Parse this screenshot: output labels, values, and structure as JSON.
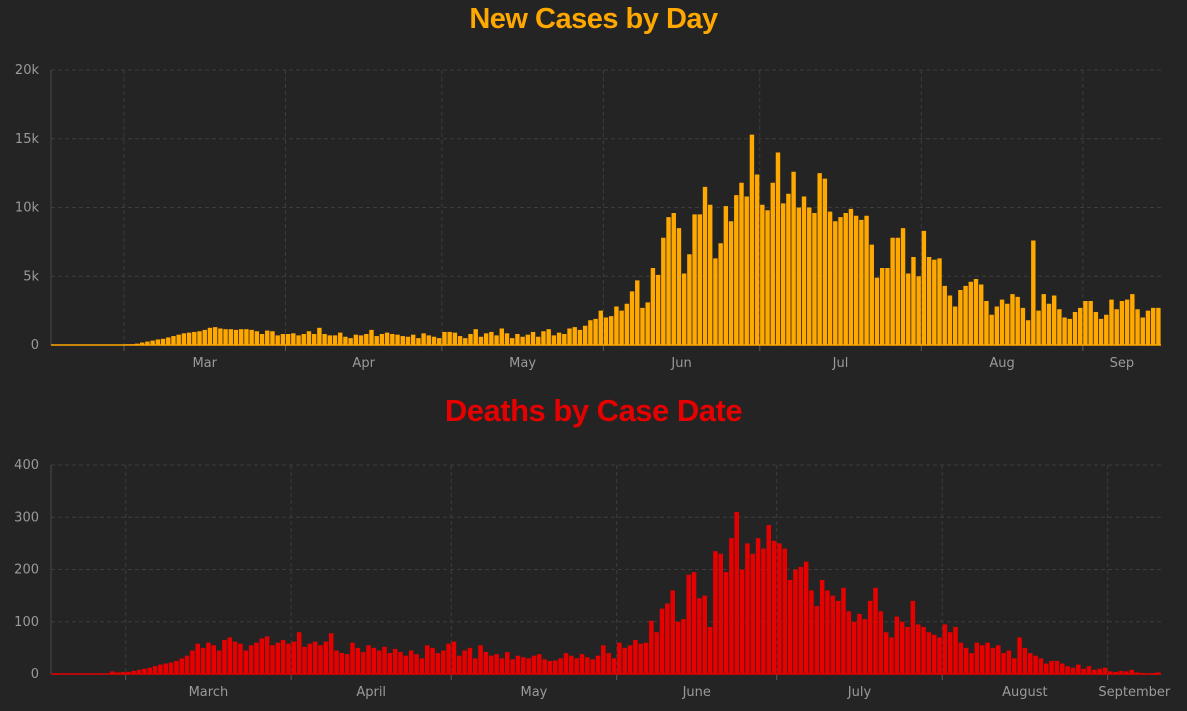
{
  "colors": {
    "background": "#242424",
    "cases": "#FFA800",
    "deaths": "#E60000",
    "grid": "#3c3c3c",
    "text": "#9a9a9a"
  },
  "chart_data": [
    {
      "type": "bar",
      "title": "New Cases by Day",
      "ylim": [
        0,
        20000
      ],
      "yticks": [
        {
          "value": 0,
          "label": "0"
        },
        {
          "value": 5000,
          "label": "5k"
        },
        {
          "value": 10000,
          "label": "10k"
        },
        {
          "value": 15000,
          "label": "15k"
        },
        {
          "value": 20000,
          "label": "20k"
        }
      ],
      "xticks": [
        {
          "date": "2020-03-01",
          "label": "Mar"
        },
        {
          "date": "2020-04-01",
          "label": "Apr"
        },
        {
          "date": "2020-05-01",
          "label": "May"
        },
        {
          "date": "2020-06-01",
          "label": "Jun"
        },
        {
          "date": "2020-07-01",
          "label": "Jul"
        },
        {
          "date": "2020-08-01",
          "label": "Aug"
        },
        {
          "date": "2020-09-01",
          "label": "Sep"
        }
      ],
      "x_start": "2020-02-16",
      "x_end": "2020-09-07",
      "grid": true,
      "values": [
        0,
        0,
        0,
        0,
        0,
        0,
        0,
        0,
        0,
        0,
        0,
        0,
        0,
        0,
        50,
        60,
        100,
        180,
        250,
        320,
        400,
        450,
        550,
        650,
        750,
        850,
        900,
        950,
        1000,
        1100,
        1250,
        1300,
        1200,
        1150,
        1150,
        1100,
        1150,
        1150,
        1100,
        1000,
        800,
        1050,
        1000,
        700,
        800,
        800,
        850,
        700,
        800,
        1000,
        800,
        1250,
        800,
        700,
        700,
        900,
        600,
        500,
        750,
        700,
        800,
        1100,
        650,
        800,
        900,
        800,
        750,
        650,
        600,
        750,
        500,
        850,
        700,
        600,
        500,
        950,
        950,
        900,
        650,
        500,
        800,
        1150,
        600,
        850,
        950,
        700,
        1200,
        850,
        500,
        800,
        600,
        750,
        950,
        600,
        1000,
        1150,
        700,
        900,
        800,
        1200,
        1300,
        1100,
        1400,
        1800,
        1900,
        2500,
        2000,
        2100,
        2800,
        2500,
        3000,
        3900,
        4700,
        2700,
        3100,
        5600,
        5100,
        7800,
        9300,
        9600,
        8500,
        5200,
        6600,
        9500,
        9500,
        11500,
        10200,
        6300,
        7400,
        10100,
        9000,
        10900,
        11800,
        10800,
        15300,
        12400,
        10200,
        9800,
        11800,
        14000,
        10300,
        11000,
        12600,
        10000,
        10800,
        10000,
        9600,
        12500,
        12100,
        9700,
        9000,
        9300,
        9600,
        9900,
        9400,
        9100,
        9400,
        7300,
        4900,
        5600,
        5600,
        7800,
        7800,
        8500,
        5200,
        6400,
        5000,
        8300,
        6400,
        6200,
        6300,
        4300,
        3600,
        2800,
        4000,
        4300,
        4600,
        4800,
        4400,
        3200,
        2200,
        2800,
        3300,
        3000,
        3700,
        3500,
        2700,
        1800,
        7600,
        2500,
        3700,
        3000,
        3600,
        2600,
        2000,
        1900,
        2400,
        2700,
        3200,
        3200,
        2400,
        1900,
        2200,
        3300,
        2600,
        3200,
        3300,
        3700,
        2600,
        2000,
        2500,
        2700,
        2700
      ]
    },
    {
      "type": "bar",
      "title": "Deaths by Case Date",
      "ylim": [
        0,
        400
      ],
      "yticks": [
        {
          "value": 0,
          "label": "0"
        },
        {
          "value": 100,
          "label": "100"
        },
        {
          "value": 200,
          "label": "200"
        },
        {
          "value": 300,
          "label": "300"
        },
        {
          "value": 400,
          "label": "400"
        }
      ],
      "xticks": [
        {
          "date": "2020-03-01",
          "label": "March"
        },
        {
          "date": "2020-04-01",
          "label": "April"
        },
        {
          "date": "2020-05-01",
          "label": "May"
        },
        {
          "date": "2020-06-01",
          "label": "June"
        },
        {
          "date": "2020-07-01",
          "label": "July"
        },
        {
          "date": "2020-08-01",
          "label": "August"
        },
        {
          "date": "2020-09-01",
          "label": "September"
        }
      ],
      "x_start": "2020-02-16",
      "x_end": "2020-09-07",
      "grid": true,
      "values": [
        0,
        0,
        0,
        0,
        0,
        0,
        0,
        0,
        0,
        0,
        0,
        5,
        3,
        4,
        4,
        6,
        8,
        10,
        12,
        15,
        18,
        20,
        22,
        25,
        30,
        35,
        45,
        58,
        50,
        60,
        55,
        45,
        65,
        70,
        62,
        58,
        45,
        55,
        60,
        68,
        72,
        55,
        60,
        65,
        58,
        62,
        80,
        52,
        58,
        62,
        55,
        62,
        78,
        45,
        40,
        38,
        60,
        50,
        42,
        55,
        50,
        45,
        52,
        40,
        48,
        42,
        35,
        45,
        38,
        30,
        55,
        50,
        40,
        45,
        58,
        62,
        35,
        45,
        50,
        30,
        55,
        42,
        35,
        38,
        30,
        42,
        28,
        35,
        32,
        30,
        35,
        38,
        28,
        25,
        26,
        30,
        40,
        35,
        30,
        38,
        32,
        28,
        35,
        55,
        40,
        30,
        60,
        50,
        55,
        65,
        58,
        60,
        102,
        80,
        125,
        135,
        160,
        100,
        105,
        190,
        195,
        145,
        150,
        90,
        235,
        230,
        195,
        260,
        310,
        200,
        250,
        230,
        260,
        240,
        285,
        255,
        250,
        240,
        180,
        200,
        205,
        215,
        160,
        130,
        180,
        160,
        150,
        140,
        165,
        120,
        100,
        115,
        105,
        140,
        165,
        120,
        80,
        70,
        110,
        100,
        90,
        140,
        95,
        90,
        80,
        75,
        70,
        95,
        80,
        90,
        60,
        50,
        40,
        60,
        55,
        60,
        50,
        55,
        40,
        45,
        30,
        70,
        50,
        40,
        35,
        30,
        20,
        25,
        25,
        20,
        15,
        12,
        18,
        10,
        15,
        8,
        10,
        12,
        5,
        4,
        6,
        5,
        8,
        3,
        2,
        1,
        2,
        3
      ]
    }
  ]
}
